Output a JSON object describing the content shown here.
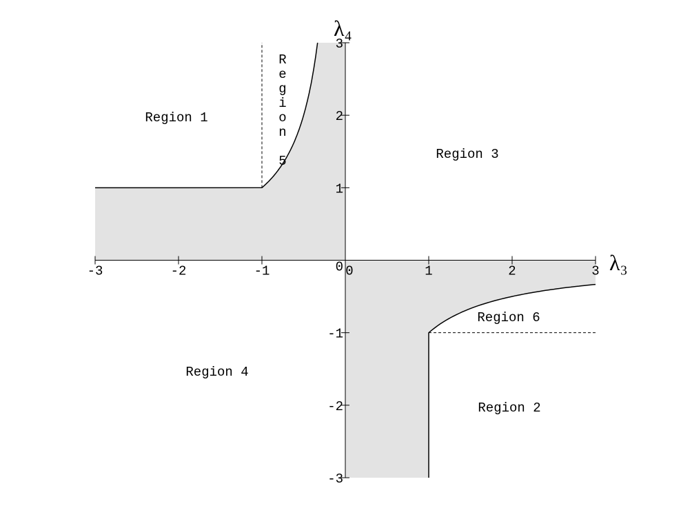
{
  "chart_data": {
    "type": "region-plot",
    "xlabel": "λ₃",
    "ylabel": "λ₄",
    "xlim": [
      -3,
      3
    ],
    "ylim": [
      -3,
      3
    ],
    "xticks": [
      -3,
      -2,
      -1,
      0,
      1,
      2,
      3
    ],
    "yticks": [
      -3,
      -2,
      -1,
      0,
      1,
      2,
      3
    ],
    "fill_color": "#e3e3e3",
    "regions": [
      "Region 1",
      "Region 2",
      "Region 3",
      "Region 4",
      "Region 5",
      "Region 6"
    ]
  }
}
